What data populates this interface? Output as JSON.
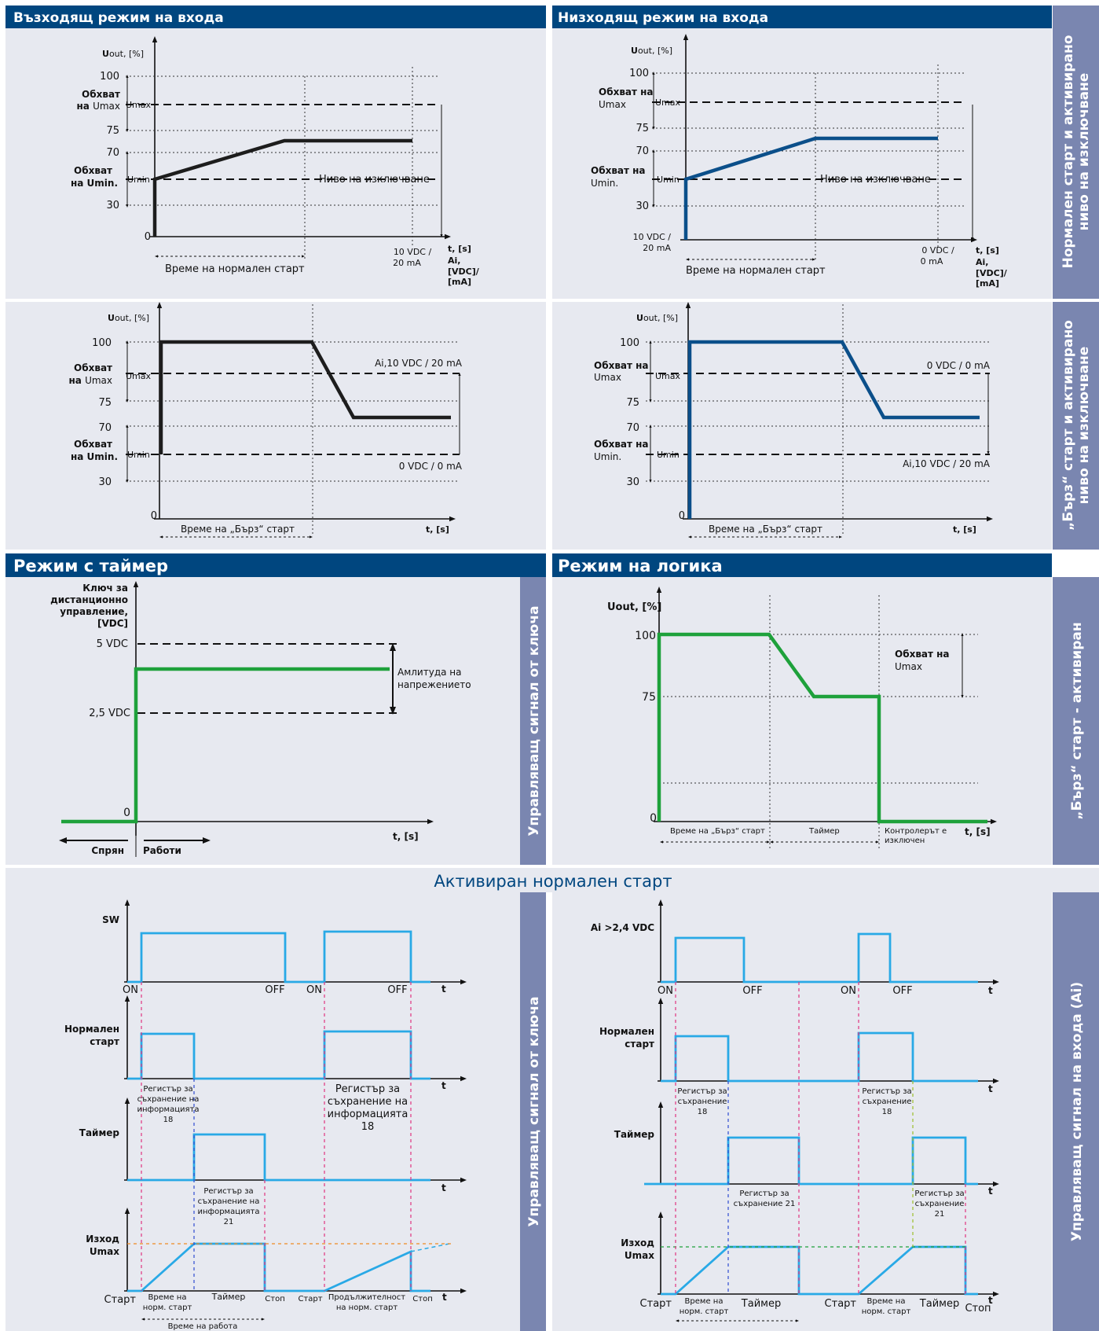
{
  "headers": {
    "ascending": "Възходящ режим на входа",
    "descending": "Низходящ режим на входа",
    "timer_mode": "Режим с таймер",
    "logic_mode": "Режим на логика",
    "activated_normal_start": "Активиран нормален старт"
  },
  "side_labels": {
    "normal_start_line1": "Нормален старт и активирано",
    "normal_start_line2": "ниво на изключване",
    "fast_start_line1": "„Бърз“ старт и активирано",
    "fast_start_line2": "ниво на изключване",
    "key_signal": "Управляващ сигнал от ключа",
    "fast_start_activated": "„Бърз“ старт - активиран",
    "input_signal": "Управляващ сигнал на входа (Ai)"
  },
  "common": {
    "uout_u": "U",
    "uout_rest": "out, [%]",
    "t_s": "t, [s]",
    "t": "t",
    "ai": "Ai,",
    "vdc_ma1": "[VDC]/",
    "vdc_ma2": "[mA]",
    "v100": "100",
    "v75": "75",
    "v70": "70",
    "v30": "30",
    "v0": "0",
    "umax": "Umax",
    "umin": "Umin",
    "range_line": "Обхват",
    "on_umax_a": "на ",
    "on_umax_b": "Umax",
    "range_na": "Обхват на",
    "umin_dot": "Umin.",
    "on_umin": "на Umin.",
    "cutoff": "Ниво на изключване",
    "normal_start_time": "Време на нормален старт",
    "fast_start_time": "Време на „Бърз“ старт"
  },
  "axis": {
    "ten_vdc": "10 VDC /",
    "twenty_ma": "20 mA",
    "ten_vdc_desc": "10 VDC /",
    "zero_vdc": "0 VDC /",
    "zero_ma": "0 mA",
    "ai_10": "Ai,10 VDC / 20 mA",
    "zero_vdc_ma": "0 VDC / 0 mA"
  },
  "timer": {
    "key_l1": "Ключ за",
    "key_l2": "дистанционно",
    "key_l3": "управление,",
    "key_l4": "[VDC]",
    "five": "5 VDC",
    "two_five": "2,5 VDC",
    "zero": "0",
    "amp1": "Амлитуда на",
    "amp2": "напрежението",
    "stopped": "Спрян",
    "working": "Работи"
  },
  "logic": {
    "uout": "Uout, [%]",
    "range1": "Обхват  на",
    "range2": "Umax",
    "fast": "Време на „Бърз“ старт",
    "timer": "Таймер",
    "ctrl1": "Контролерът е",
    "ctrl2": "изключен"
  },
  "bottom_left": {
    "sw": "SW",
    "on": "ON",
    "off": "OFF",
    "normal1": "Нормален",
    "normal2": "старт",
    "reg_l1": "Регистър за",
    "reg_l2": "съхранение на",
    "reg_l3": "информацията",
    "reg18": "18",
    "reg21": "21",
    "timer": "Таймер",
    "out1": "Изход",
    "out2": "Umax",
    "start": "Старт",
    "time_norm1": "Време на",
    "time_norm2": "норм. старт",
    "timer_lbl": "Таймер",
    "stop": "Стоп",
    "dur1": "Продължителност",
    "dur2": "на норм. старт",
    "work_time": "Време на работа"
  },
  "bottom_right": {
    "ai": "Ai >2,4 VDC",
    "on": "ON",
    "off": "OFF",
    "normal1": "Нормален",
    "normal2": "старт",
    "reg_l1": "Регистър за",
    "reg_l2": "съхранение",
    "reg18": "18",
    "reg21": "съхранение 21",
    "reg21b": "21",
    "timer": "Таймер",
    "out1": "Изход",
    "out2": "Umax",
    "start": "Старт",
    "time_norm1": "Време на",
    "time_norm2": "норм. старт",
    "timer_lbl": "Таймер",
    "stop": "Стоп"
  },
  "colors": {
    "navy": "#00467f",
    "side": "#7a86b0",
    "panel": "#e7e9f0",
    "green": "#1ea13b",
    "cyan": "#29a9e6",
    "blue_line": "#0b4f8a"
  }
}
